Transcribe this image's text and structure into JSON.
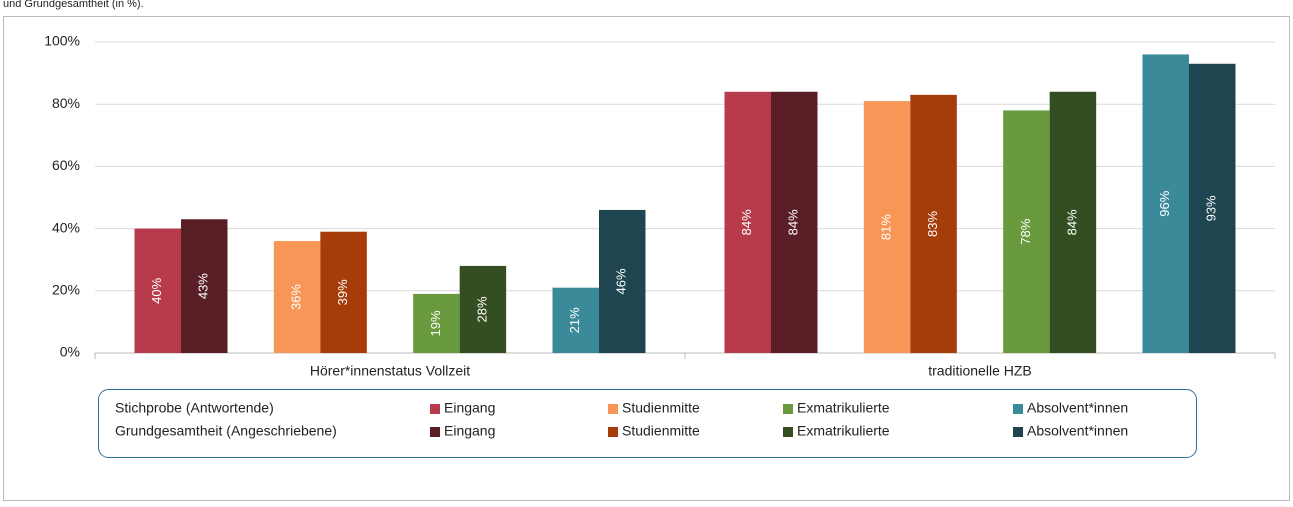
{
  "chart_data": {
    "type": "bar",
    "title": "und Grundgesamtheit (in %).",
    "categories": [
      "Hörer*innenstatus Vollzeit",
      "traditionelle HZB"
    ],
    "legend_rows": [
      "Stichprobe (Antwortende)",
      "Grundgesamtheit (Angeschriebene)"
    ],
    "series": [
      {
        "name": "Eingang",
        "color": "#b83b4b",
        "values": [
          40,
          84
        ],
        "value_labels": [
          "40%",
          "84%"
        ]
      },
      {
        "name": "Eingang",
        "color": "#5a1e27",
        "values": [
          43,
          84
        ],
        "value_labels": [
          "43%",
          "84%"
        ]
      },
      {
        "name": "Studienmitte",
        "color": "#f79656",
        "values": [
          36,
          81
        ],
        "value_labels": [
          "36%",
          "81%"
        ]
      },
      {
        "name": "Studienmitte",
        "color": "#a63c0a",
        "values": [
          39,
          83
        ],
        "value_labels": [
          "39%",
          "83%"
        ]
      },
      {
        "name": "Exmatrikulierte",
        "color": "#6a9a3e",
        "values": [
          19,
          78
        ],
        "value_labels": [
          "19%",
          "78%"
        ]
      },
      {
        "name": "Exmatrikulierte",
        "color": "#344e22",
        "values": [
          28,
          84
        ],
        "value_labels": [
          "28%",
          "84%"
        ]
      },
      {
        "name": "Absolvent*innen",
        "color": "#3b8a9a",
        "values": [
          21,
          96
        ],
        "value_labels": [
          "21%",
          "96%"
        ]
      },
      {
        "name": "Absolvent*innen",
        "color": "#1f4550",
        "values": [
          46,
          93
        ],
        "value_labels": [
          "46%",
          "93%"
        ]
      }
    ],
    "ylim": [
      0,
      100
    ],
    "yticks": [
      {
        "value": 0,
        "label": "0%"
      },
      {
        "value": 20,
        "label": "20%"
      },
      {
        "value": 40,
        "label": "40%"
      },
      {
        "value": 60,
        "label": "60%"
      },
      {
        "value": 80,
        "label": "80%"
      },
      {
        "value": 100,
        "label": "100%"
      }
    ],
    "grid": true
  }
}
